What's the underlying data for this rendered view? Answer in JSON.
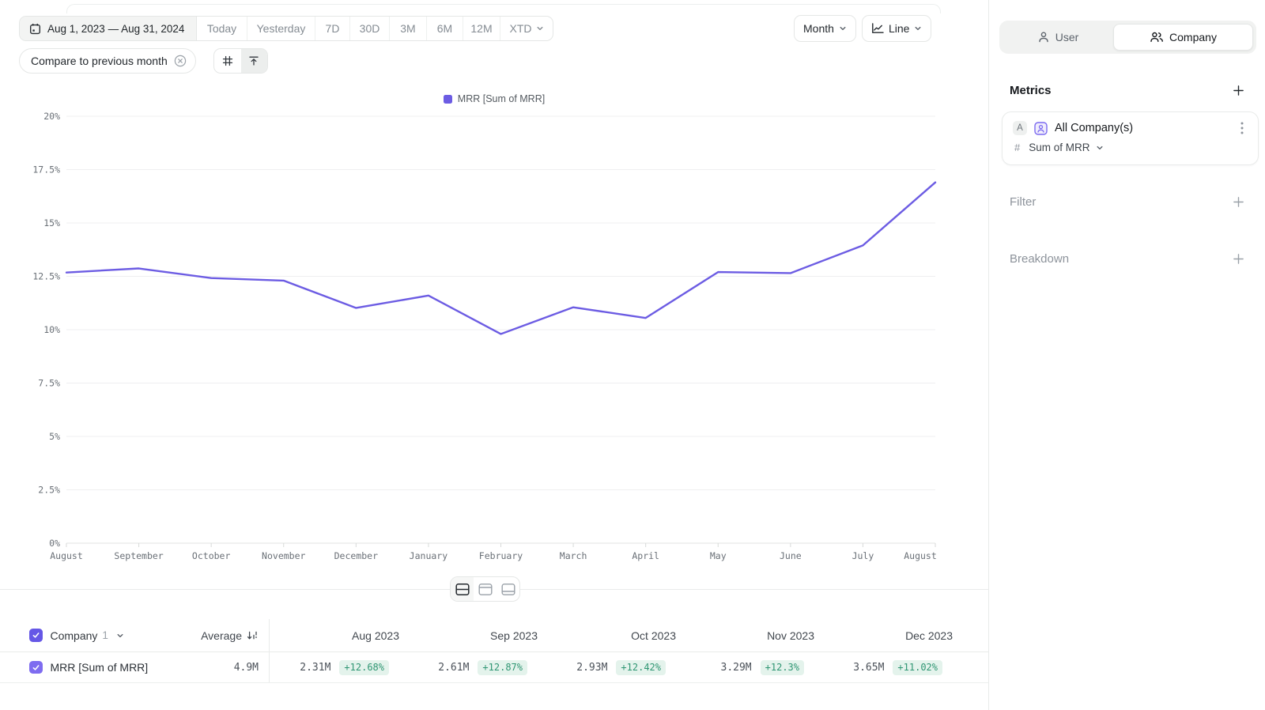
{
  "toolbar": {
    "date_range": "Aug 1, 2023 — Aug 31, 2024",
    "quick_ranges": [
      "Today",
      "Yesterday",
      "7D",
      "30D",
      "3M",
      "6M",
      "12M"
    ],
    "xtd_label": "XTD",
    "compare_label": "Compare to previous month",
    "granularity": "Month",
    "chart_type": "Line"
  },
  "sidebar": {
    "view_toggle": {
      "user_label": "User",
      "company_label": "Company",
      "selected": "Company"
    },
    "metrics_title": "Metrics",
    "metric_card": {
      "series_badge": "A",
      "name": "All Company(s)",
      "aggregation": "Sum of MRR"
    },
    "filter_label": "Filter",
    "breakdown_label": "Breakdown"
  },
  "chart_data": {
    "type": "line",
    "title": "",
    "legend": [
      "MRR [Sum of MRR]"
    ],
    "legend_position": "top-center",
    "x": [
      "August",
      "September",
      "October",
      "November",
      "December",
      "January",
      "February",
      "March",
      "April",
      "May",
      "June",
      "July",
      "August"
    ],
    "series": [
      {
        "name": "MRR [Sum of MRR]",
        "color": "#6c5ce3",
        "values": [
          12.68,
          12.87,
          12.42,
          12.3,
          11.02,
          11.6,
          9.8,
          11.05,
          10.55,
          12.7,
          12.65,
          13.95,
          16.9
        ]
      }
    ],
    "unit": "%",
    "ylim": [
      0,
      20
    ],
    "y_ticks": [
      "0%",
      "2.5%",
      "5%",
      "7.5%",
      "10%",
      "12.5%",
      "15%",
      "17.5%",
      "20%"
    ],
    "grid": true
  },
  "table": {
    "group": {
      "label": "Company",
      "count": "1"
    },
    "average_label": "Average",
    "columns": [
      "Aug 2023",
      "Sep 2023",
      "Oct 2023",
      "Nov 2023",
      "Dec 2023"
    ],
    "rows": [
      {
        "label": "MRR [Sum of MRR]",
        "checked": true,
        "average": "4.9M",
        "cells": [
          {
            "value": "2.31M",
            "delta": "+12.68%"
          },
          {
            "value": "2.61M",
            "delta": "+12.87%"
          },
          {
            "value": "2.93M",
            "delta": "+12.42%"
          },
          {
            "value": "3.29M",
            "delta": "+12.3%"
          },
          {
            "value": "3.65M",
            "delta": "+11.02%"
          }
        ]
      }
    ]
  },
  "colors": {
    "accent_purple": "#6c5ce3",
    "checkbox_header": "#6557e6",
    "checkbox_row": "#7e6cf0",
    "delta_bg": "#e4f3ec",
    "delta_text": "#2f9673",
    "border": "#e9ebea",
    "grid_line": "#efeff0",
    "axis_text": "#6a7077",
    "muted_text": "#858c93"
  }
}
